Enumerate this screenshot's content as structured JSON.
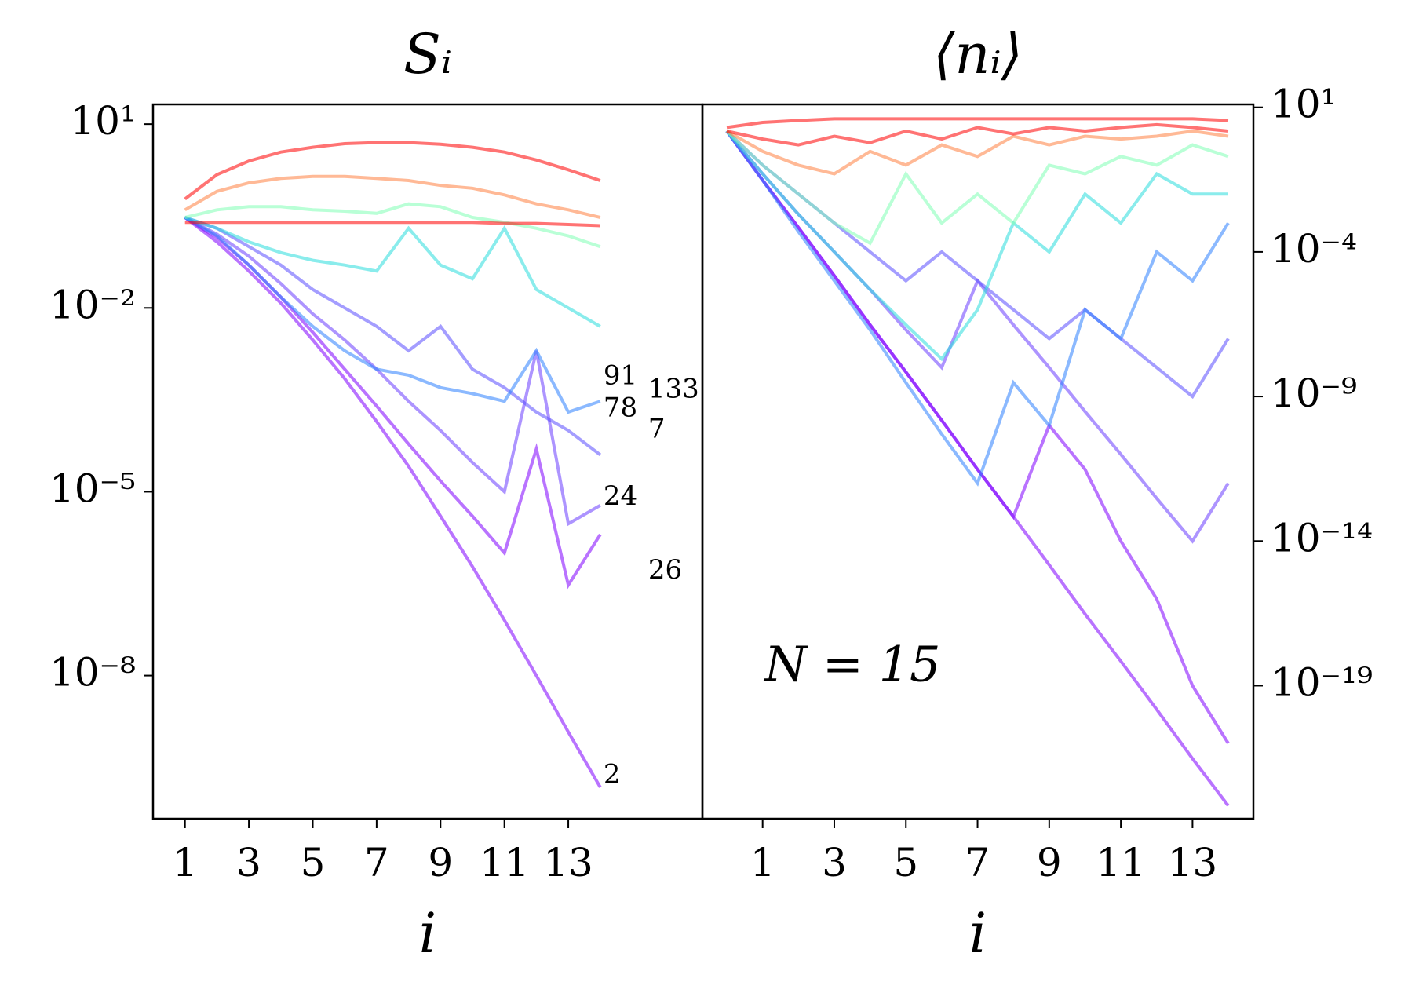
{
  "chart_data": [
    {
      "type": "line",
      "title": "Sᵢ",
      "xlabel": "i",
      "yscale": "log",
      "y_axis_side": "left",
      "x": [
        1,
        2,
        3,
        4,
        5,
        6,
        7,
        8,
        9,
        10,
        11,
        12,
        13,
        14
      ],
      "xlim": [
        0,
        17.2
      ],
      "xticks": [
        1,
        3,
        5,
        7,
        9,
        11,
        13
      ],
      "ylim": [
        4.6e-11,
        21
      ],
      "yticks": [
        {
          "value": 10,
          "label": "10¹"
        },
        {
          "value": 0.01,
          "label": "10⁻²"
        },
        {
          "value": 1e-05,
          "label": "10⁻⁵"
        },
        {
          "value": 1e-08,
          "label": "10⁻⁸"
        }
      ],
      "series": [
        {
          "color": "#7f00ff",
          "values": [
            0.3,
            0.12,
            0.04,
            0.012,
            0.003,
            0.0007,
            0.00014,
            2.6e-05,
            4e-06,
            6e-07,
            8e-08,
            1e-08,
            1.2e-09,
            1.5e-10
          ]
        },
        {
          "color": "#7f00ff",
          "values": [
            0.3,
            0.14,
            0.05,
            0.015,
            0.004,
            0.001,
            0.00025,
            6e-05,
            1.5e-05,
            4e-06,
            1e-06,
            5e-05,
            3e-07,
            2e-06
          ]
        },
        {
          "color": "#6a3cff",
          "values": [
            0.3,
            0.16,
            0.07,
            0.025,
            0.008,
            0.003,
            0.001,
            0.0003,
            0.0001,
            3e-05,
            1e-05,
            0.002,
            3e-06,
            6e-06
          ]
        },
        {
          "color": "#5a4cff",
          "values": [
            0.3,
            0.2,
            0.1,
            0.05,
            0.02,
            0.01,
            0.005,
            0.002,
            0.005,
            0.001,
            0.0005,
            0.0002,
            0.0001,
            4e-05
          ]
        },
        {
          "color": "#2c7fff",
          "values": [
            0.3,
            0.15,
            0.05,
            0.015,
            0.005,
            0.002,
            0.001,
            0.0008,
            0.0005,
            0.0004,
            0.0003,
            0.002,
            0.0002,
            0.0003
          ]
        },
        {
          "color": "#2adddd",
          "values": [
            0.3,
            0.2,
            0.12,
            0.08,
            0.06,
            0.05,
            0.04,
            0.2,
            0.05,
            0.03,
            0.2,
            0.02,
            0.01,
            0.005
          ]
        },
        {
          "color": "#80ffb4",
          "values": [
            0.3,
            0.4,
            0.45,
            0.45,
            0.4,
            0.38,
            0.35,
            0.5,
            0.45,
            0.3,
            0.25,
            0.2,
            0.15,
            0.1
          ]
        },
        {
          "color": "#ff8040",
          "values": [
            0.4,
            0.8,
            1.1,
            1.3,
            1.4,
            1.4,
            1.3,
            1.2,
            1,
            0.9,
            0.7,
            0.5,
            0.4,
            0.3
          ]
        },
        {
          "color": "#ff0000",
          "values": [
            0.25,
            0.25,
            0.25,
            0.25,
            0.25,
            0.25,
            0.25,
            0.25,
            0.25,
            0.25,
            0.24,
            0.24,
            0.23,
            0.22
          ]
        },
        {
          "color": "#ff0000",
          "values": [
            0.6,
            1.5,
            2.5,
            3.5,
            4.2,
            4.8,
            5,
            5,
            4.7,
            4.2,
            3.5,
            2.6,
            1.8,
            1.2
          ]
        }
      ],
      "annotations": [
        {
          "text": "91",
          "x": 14.1,
          "y": 0.00074
        },
        {
          "text": "133",
          "x": 15.5,
          "y": 0.00045
        },
        {
          "text": "78",
          "x": 14.1,
          "y": 0.00022
        },
        {
          "text": "7",
          "x": 15.5,
          "y": 0.0001
        },
        {
          "text": "24",
          "x": 14.1,
          "y": 8e-06
        },
        {
          "text": "26",
          "x": 15.5,
          "y": 5e-07
        },
        {
          "text": "2",
          "x": 14.1,
          "y": 2.3e-10
        }
      ]
    },
    {
      "type": "line",
      "title": "⟨nᵢ⟩",
      "xlabel": "i",
      "yscale": "log",
      "y_axis_side": "right",
      "x": [
        0,
        1,
        2,
        3,
        4,
        5,
        6,
        7,
        8,
        9,
        10,
        11,
        12,
        13,
        14
      ],
      "xlim": [
        -0.68,
        14.7
      ],
      "xticks": [
        1,
        3,
        5,
        7,
        9,
        11,
        13
      ],
      "ylim": [
        2.5e-24,
        12.6
      ],
      "yticks": [
        {
          "value": 10,
          "label": "10¹"
        },
        {
          "value": 0.0001,
          "label": "10⁻⁴"
        },
        {
          "value": 1e-09,
          "label": "10⁻⁹"
        },
        {
          "value": 1e-14,
          "label": "10⁻¹⁴"
        },
        {
          "value": 1e-19,
          "label": "10⁻¹⁹"
        }
      ],
      "series": [
        {
          "color": "#7f00ff",
          "values": [
            1.5,
            0.03,
            0.0007,
            1.5e-05,
            3e-07,
            7e-09,
            1.5e-10,
            3e-12,
            7e-14,
            1.5e-15,
            3e-17,
            7e-19,
            1.5e-20,
            3e-22,
            7e-24
          ]
        },
        {
          "color": "#7f00ff",
          "values": [
            1.5,
            0.03,
            0.0007,
            1.5e-05,
            3e-07,
            7e-09,
            1.5e-10,
            3e-12,
            7e-14,
            1e-10,
            3e-12,
            1e-14,
            1e-16,
            1e-19,
            1e-21
          ]
        },
        {
          "color": "#6a3cff",
          "values": [
            1.5,
            0.05,
            0.002,
            0.0001,
            5e-06,
            2e-07,
            1e-08,
            1e-05,
            3e-07,
            1e-08,
            3e-10,
            1e-11,
            3e-13,
            1e-14,
            1e-12
          ]
        },
        {
          "color": "#5a4cff",
          "values": [
            1.5,
            0.1,
            0.01,
            0.001,
            0.0001,
            1e-05,
            0.0001,
            1e-05,
            1e-06,
            1e-07,
            1e-06,
            1e-07,
            1e-08,
            1e-09,
            1e-07
          ]
        },
        {
          "color": "#2c7fff",
          "values": [
            1.5,
            0.03,
            0.0005,
            1e-05,
            2e-07,
            3e-09,
            5e-11,
            1e-12,
            3e-09,
            1e-10,
            1e-06,
            1e-07,
            0.0001,
            1e-05,
            0.001
          ]
        },
        {
          "color": "#2adddd",
          "values": [
            1.5,
            0.05,
            0.002,
            0.0001,
            5e-06,
            3e-07,
            2e-08,
            1e-06,
            0.001,
            0.0001,
            0.01,
            0.001,
            0.05,
            0.01,
            0.01
          ]
        },
        {
          "color": "#80ffb4",
          "values": [
            1.5,
            0.1,
            0.01,
            0.001,
            0.0002,
            0.05,
            0.001,
            0.01,
            0.001,
            0.1,
            0.05,
            0.2,
            0.1,
            0.5,
            0.2
          ]
        },
        {
          "color": "#ff8040",
          "values": [
            1.5,
            0.3,
            0.1,
            0.05,
            0.3,
            0.1,
            0.5,
            0.2,
            1,
            0.5,
            1,
            0.8,
            1,
            1.5,
            1
          ]
        },
        {
          "color": "#ff0000",
          "values": [
            1.5,
            0.8,
            0.5,
            1,
            0.6,
            1.5,
            0.8,
            2,
            1.2,
            2,
            1.5,
            2,
            2.5,
            2,
            1.5
          ]
        },
        {
          "color": "#ff0000",
          "values": [
            2,
            3,
            3.5,
            4,
            4,
            4,
            4,
            4,
            4,
            4,
            4,
            4,
            4,
            4,
            3.5
          ]
        }
      ],
      "annotations": [
        {
          "text": "N = 15",
          "x": 1.05,
          "y": 4e-19,
          "size": "big"
        }
      ]
    }
  ]
}
